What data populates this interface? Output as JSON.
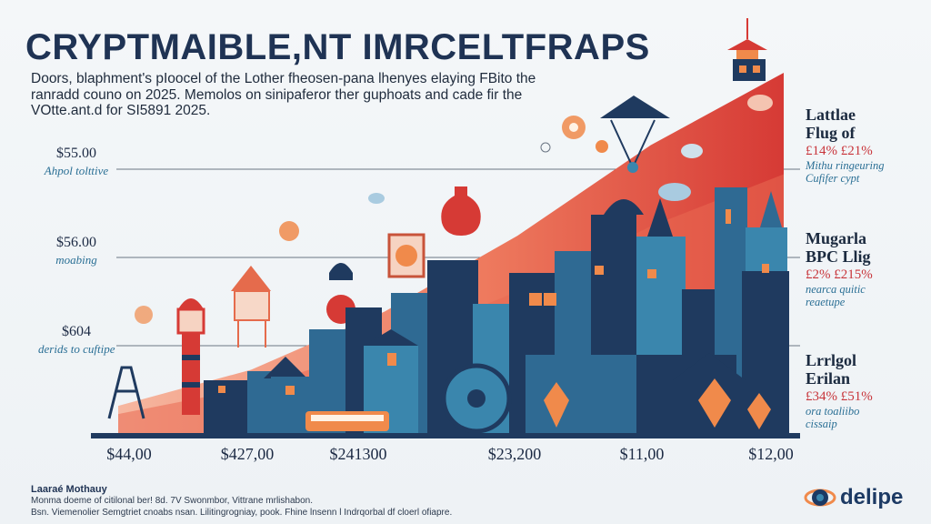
{
  "header": {
    "title": "CRYPTMAIBLE,NT IMRCELTFRAPS",
    "subtitle_lines": [
      "Doors, blaphment's pIoocel of the Lother fheosen-pana lhenyes elaying FBito the",
      "ranradd couno on 2025. Memolos on sinipaferor ther guphoats and cade fir the",
      "VOtte.ant.d for SI5891 2025."
    ]
  },
  "y_axis_labels": [
    {
      "value": "$55.00",
      "label": "Ahpol tolttive"
    },
    {
      "value": "$56.00",
      "label": "moabing"
    },
    {
      "value": "$604",
      "label": "derids to cuftipe"
    }
  ],
  "legend": [
    {
      "title_line1": "Lattlae",
      "title_line2": "Flug of",
      "value": "£14% £21%",
      "desc_line1": "Mithu ringeuring",
      "desc_line2": "Cufifer cypt"
    },
    {
      "title_line1": "Mugarla",
      "title_line2": "BPC Llig",
      "value": "£2% £215%",
      "desc_line1": "nearca quitic",
      "desc_line2": "reaetupe"
    },
    {
      "title_line1": "Lrrlgol",
      "title_line2": "Erilan",
      "value": "£34% £51%",
      "desc_line1": "ora toaliibo",
      "desc_line2": "cissaip"
    }
  ],
  "footer": {
    "source_title": "Laaraé Mothauy",
    "source_lines": [
      "Monma doeme of citilonal ber! 8d. 7V Swonmbor, Vittrane mrlishabon.",
      "Bsn. Viemenolier Semgtriet cnoabs nsan. Lilitingrogniay, pook. Fhine lnsenn l Indrqorbal df cloerl ofiapre."
    ],
    "logo_text": "delipe"
  },
  "colors": {
    "area_light": "#f2a48c",
    "area_mid": "#ea6a52",
    "area_dark": "#d63a35",
    "city_dark": "#1f3a5f",
    "city_mid": "#2f6a93",
    "city_light": "#3a86ad",
    "accent_orange": "#f08a4b",
    "gridline": "#6b7684"
  },
  "chart_data": {
    "type": "area",
    "title": "CRYPTMAIBLE,NT IMRCELTFRAPS",
    "x": [
      "$44,00",
      "$427,00",
      "$241300",
      "$23,200",
      "$11,00",
      "$12,00"
    ],
    "y": [
      8,
      18,
      34,
      55,
      80,
      100
    ],
    "y_tick_labels": [
      "$55.00",
      "$56.00",
      "$604"
    ],
    "ylim": [
      0,
      100
    ],
    "grid": true,
    "legend_placement": "right"
  }
}
